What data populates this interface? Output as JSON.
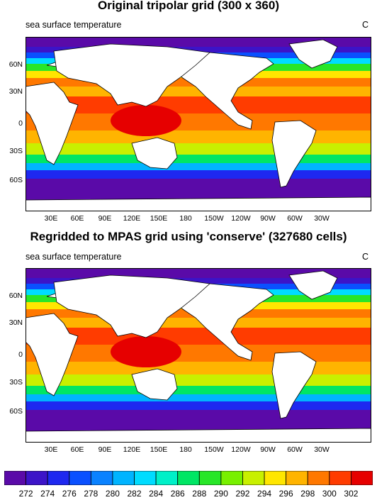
{
  "panels": [
    {
      "title": "Original tripolar grid (300 x 360)",
      "left_label": "sea surface temperature",
      "right_label": "C"
    },
    {
      "title": "Regridded to MPAS grid using 'conserve' (327680 cells)",
      "left_label": "sea surface temperature",
      "right_label": "C"
    }
  ],
  "lat_ticks": [
    "60N",
    "30N",
    "0",
    "30S",
    "60S"
  ],
  "lon_ticks": [
    "30E",
    "60E",
    "90E",
    "120E",
    "150E",
    "180",
    "150W",
    "120W",
    "90W",
    "60W",
    "30W"
  ],
  "colorbar": {
    "labels": [
      "272",
      "274",
      "276",
      "278",
      "280",
      "282",
      "284",
      "286",
      "288",
      "290",
      "292",
      "294",
      "296",
      "298",
      "300",
      "302"
    ],
    "colors": [
      "#5a0aa8",
      "#3c14c8",
      "#1e28f0",
      "#0a50ff",
      "#0a82ff",
      "#00b4ff",
      "#00dcff",
      "#00f0c8",
      "#00e664",
      "#28e628",
      "#78f000",
      "#c8f000",
      "#ffe600",
      "#ffb400",
      "#ff7800",
      "#ff3c00",
      "#e60000"
    ]
  }
}
